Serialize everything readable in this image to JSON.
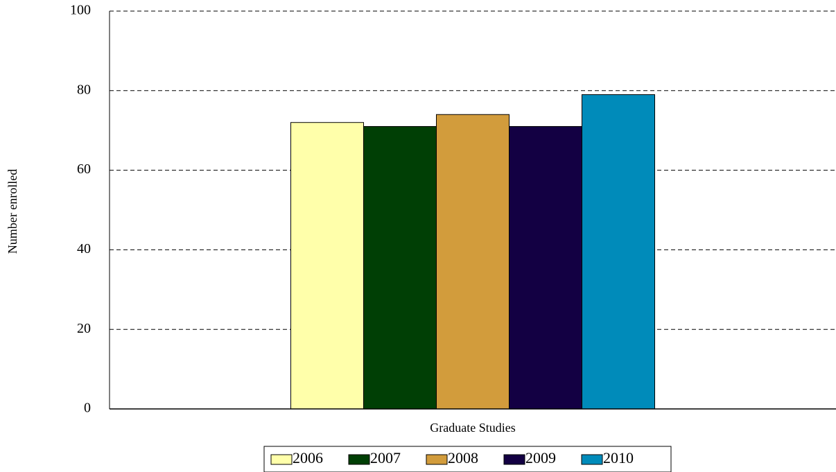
{
  "chart_data": {
    "type": "bar",
    "title": "",
    "xlabel": "",
    "ylabel": "Number enrolled",
    "categories": [
      "Graduate Studies"
    ],
    "series": [
      {
        "name": "2006",
        "values": [
          72
        ],
        "color": "#FFFFAA"
      },
      {
        "name": "2007",
        "values": [
          71
        ],
        "color": "#003F05"
      },
      {
        "name": "2008",
        "values": [
          74
        ],
        "color": "#D29C3C"
      },
      {
        "name": "2009",
        "values": [
          71
        ],
        "color": "#130043"
      },
      {
        "name": "2010",
        "values": [
          79
        ],
        "color": "#008BBA"
      }
    ],
    "ylim": [
      0,
      100
    ],
    "yticks": [
      0,
      20,
      40,
      60,
      80,
      100
    ],
    "grid": "horizontal-dashed",
    "legend_position": "bottom"
  }
}
